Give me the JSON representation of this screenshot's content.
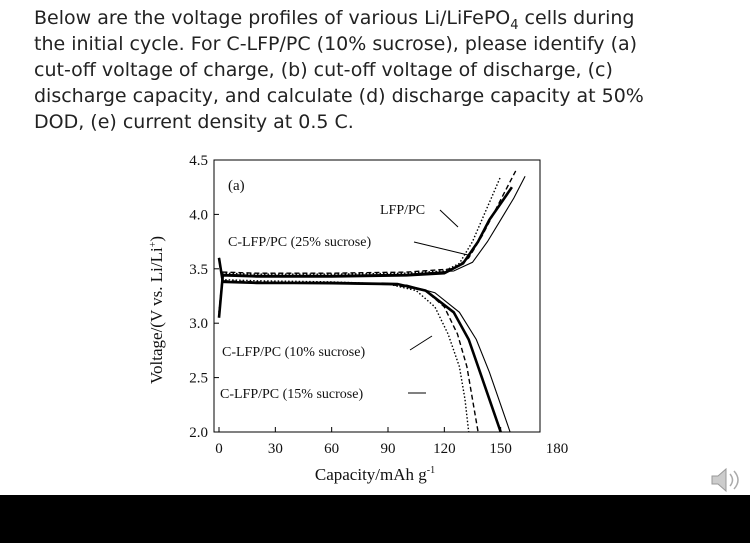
{
  "question": {
    "lines": [
      [
        "Below are the voltage profiles of various Li/LiFePO",
        "4",
        " cells during"
      ],
      "the initial cycle. For C-LFP/PC (10% sucrose), please identify (a)",
      "cut-off voltage of charge, (b) cut-off voltage of discharge, (c)",
      "discharge capacity, and calculate (d) discharge capacity at 50%",
      "DOD, (e) current density at 0.5 C."
    ]
  },
  "chart_data": {
    "type": "line",
    "panel_label": "(a)",
    "y_label": [
      "Voltage/(V vs. Li/Li",
      "+",
      ")"
    ],
    "x_label": [
      "Capacity/mAh g",
      "-1"
    ],
    "xlim": [
      0,
      180
    ],
    "xticks": [
      0,
      30,
      60,
      90,
      120,
      150,
      180
    ],
    "ylim": [
      2,
      4.5
    ],
    "yticks": [
      {
        "value": 2,
        "label": "2.0"
      },
      2.5,
      {
        "value": 3,
        "label": "3.0"
      },
      3.5,
      {
        "value": 4,
        "label": "4.0"
      },
      4.5
    ],
    "series": [
      {
        "name": "LFP/PC",
        "color": "#000000",
        "style": "dotted",
        "charge": {
          "x": [
            0,
            2,
            20,
            60,
            100,
            120,
            128,
            135,
            140,
            145,
            150
          ],
          "values": [
            3.1,
            3.46,
            3.45,
            3.45,
            3.46,
            3.48,
            3.55,
            3.75,
            3.95,
            4.15,
            4.35
          ]
        },
        "discharge": {
          "x": [
            0,
            2,
            20,
            60,
            90,
            105,
            115,
            122,
            128,
            131,
            133
          ],
          "values": [
            3.6,
            3.4,
            3.39,
            3.38,
            3.36,
            3.3,
            3.15,
            2.9,
            2.6,
            2.3,
            2.0
          ]
        }
      },
      {
        "name": "C-LFP/PC (25% sucrose)",
        "color": "#000000",
        "style": "dashed",
        "charge": {
          "x": [
            0,
            2,
            20,
            60,
            100,
            125,
            133,
            140,
            146,
            152,
            158
          ],
          "values": [
            3.1,
            3.47,
            3.46,
            3.46,
            3.47,
            3.5,
            3.6,
            3.8,
            4.0,
            4.2,
            4.4
          ]
        },
        "discharge": {
          "x": [
            0,
            2,
            20,
            60,
            90,
            110,
            120,
            127,
            132,
            135,
            138
          ],
          "values": [
            3.6,
            3.39,
            3.38,
            3.37,
            3.36,
            3.3,
            3.15,
            2.9,
            2.6,
            2.3,
            2.0
          ]
        }
      },
      {
        "name": "C-LFP/PC (10% sucrose)",
        "color": "#000000",
        "style": "thick",
        "charge": {
          "x": [
            0,
            2,
            20,
            60,
            100,
            120,
            130,
            138,
            144,
            150,
            156
          ],
          "values": [
            3.05,
            3.44,
            3.43,
            3.43,
            3.44,
            3.46,
            3.55,
            3.75,
            3.95,
            4.1,
            4.25
          ]
        },
        "discharge": {
          "x": [
            0,
            2,
            20,
            60,
            95,
            110,
            125,
            133,
            140,
            145,
            150
          ],
          "values": [
            3.6,
            3.38,
            3.37,
            3.37,
            3.36,
            3.3,
            3.1,
            2.85,
            2.5,
            2.25,
            2.0
          ]
        }
      },
      {
        "name": "C-LFP/PC (15% sucrose)",
        "color": "#000000",
        "style": "thin",
        "charge": {
          "x": [
            0,
            2,
            20,
            60,
            100,
            125,
            135,
            143,
            150,
            157,
            163
          ],
          "values": [
            3.1,
            3.45,
            3.44,
            3.44,
            3.45,
            3.48,
            3.56,
            3.75,
            3.95,
            4.15,
            4.35
          ]
        },
        "discharge": {
          "x": [
            0,
            2,
            20,
            60,
            100,
            115,
            128,
            137,
            144,
            150,
            155
          ],
          "values": [
            3.6,
            3.38,
            3.37,
            3.36,
            3.35,
            3.28,
            3.1,
            2.85,
            2.55,
            2.25,
            2.0
          ]
        }
      }
    ]
  }
}
